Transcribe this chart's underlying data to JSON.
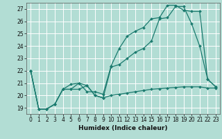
{
  "background_color": "#b2ddd4",
  "grid_color": "#ffffff",
  "line_color": "#1a7a6e",
  "xlabel": "Humidex (Indice chaleur)",
  "xlim": [
    -0.5,
    23.5
  ],
  "ylim": [
    18.5,
    27.5
  ],
  "yticks": [
    19,
    20,
    21,
    22,
    23,
    24,
    25,
    26,
    27
  ],
  "xticks": [
    0,
    1,
    2,
    3,
    4,
    5,
    6,
    7,
    8,
    9,
    10,
    11,
    12,
    13,
    14,
    15,
    16,
    17,
    18,
    19,
    20,
    21,
    22,
    23
  ],
  "line1_x": [
    0,
    1,
    2,
    3,
    4,
    5,
    6,
    7,
    8,
    9,
    10,
    11,
    12,
    13,
    14,
    15,
    16,
    17,
    18,
    19,
    20,
    21,
    22,
    23
  ],
  "line1_y": [
    22.0,
    18.9,
    18.9,
    19.3,
    20.5,
    20.5,
    20.5,
    20.8,
    20.0,
    19.8,
    20.0,
    20.1,
    20.2,
    20.3,
    20.4,
    20.5,
    20.55,
    20.6,
    20.65,
    20.7,
    20.7,
    20.7,
    20.6,
    20.6
  ],
  "line2_x": [
    0,
    1,
    2,
    3,
    4,
    5,
    6,
    7,
    8,
    9,
    10,
    11,
    12,
    13,
    14,
    15,
    16,
    17,
    18,
    19,
    20,
    21,
    22,
    23
  ],
  "line2_y": [
    22.0,
    18.9,
    18.9,
    19.3,
    20.5,
    20.5,
    21.0,
    20.8,
    20.0,
    19.8,
    22.3,
    22.5,
    23.0,
    23.5,
    23.8,
    24.4,
    26.2,
    26.3,
    27.2,
    27.2,
    25.8,
    24.0,
    21.3,
    20.7
  ],
  "line3_x": [
    0,
    1,
    2,
    3,
    4,
    5,
    6,
    7,
    8,
    9,
    10,
    11,
    12,
    13,
    14,
    15,
    16,
    17,
    18,
    19,
    20,
    21,
    22,
    23
  ],
  "line3_y": [
    22.0,
    18.9,
    18.9,
    19.3,
    20.5,
    20.9,
    21.0,
    20.3,
    20.3,
    20.1,
    22.4,
    23.8,
    24.8,
    25.2,
    25.5,
    26.2,
    26.3,
    27.3,
    27.3,
    26.9,
    26.8,
    26.8,
    21.3,
    20.7
  ],
  "marker": "D",
  "markersize": 2.0,
  "linewidth": 0.9,
  "tick_fontsize": 5.5,
  "xlabel_fontsize": 6.5
}
